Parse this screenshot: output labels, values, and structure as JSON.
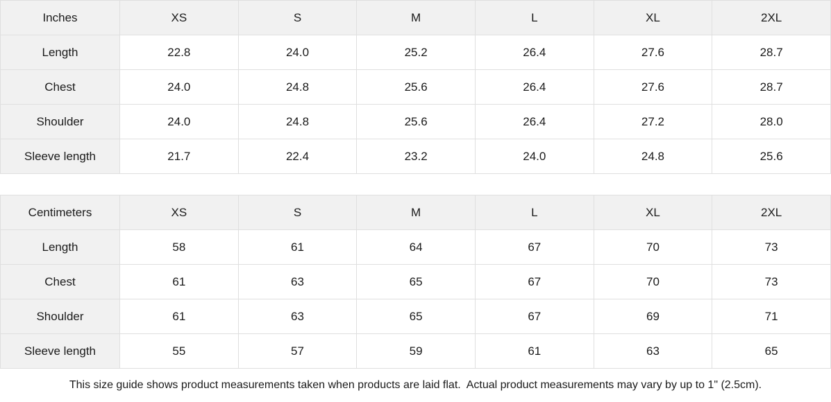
{
  "colors": {
    "header_bg": "#f1f1f1",
    "border": "#dfdfdf",
    "cell_bg": "#ffffff",
    "text": "#1a1a1a"
  },
  "inches_table": {
    "unit_label": "Inches",
    "sizes": [
      "XS",
      "S",
      "M",
      "L",
      "XL",
      "2XL"
    ],
    "rows": [
      {
        "label": "Length",
        "values": [
          "22.8",
          "24.0",
          "25.2",
          "26.4",
          "27.6",
          "28.7"
        ]
      },
      {
        "label": "Chest",
        "values": [
          "24.0",
          "24.8",
          "25.6",
          "26.4",
          "27.6",
          "28.7"
        ]
      },
      {
        "label": "Shoulder",
        "values": [
          "24.0",
          "24.8",
          "25.6",
          "26.4",
          "27.2",
          "28.0"
        ]
      },
      {
        "label": "Sleeve length",
        "values": [
          "21.7",
          "22.4",
          "23.2",
          "24.0",
          "24.8",
          "25.6"
        ]
      }
    ]
  },
  "centimeters_table": {
    "unit_label": "Centimeters",
    "sizes": [
      "XS",
      "S",
      "M",
      "L",
      "XL",
      "2XL"
    ],
    "rows": [
      {
        "label": "Length",
        "values": [
          "58",
          "61",
          "64",
          "67",
          "70",
          "73"
        ]
      },
      {
        "label": "Chest",
        "values": [
          "61",
          "63",
          "65",
          "67",
          "70",
          "73"
        ]
      },
      {
        "label": "Shoulder",
        "values": [
          "61",
          "63",
          "65",
          "67",
          "69",
          "71"
        ]
      },
      {
        "label": "Sleeve length",
        "values": [
          "55",
          "57",
          "59",
          "61",
          "63",
          "65"
        ]
      }
    ]
  },
  "footer": {
    "note": "This size guide shows product measurements taken when products are laid flat.  Actual product measurements may vary by up to 1\" (2.5cm)."
  }
}
